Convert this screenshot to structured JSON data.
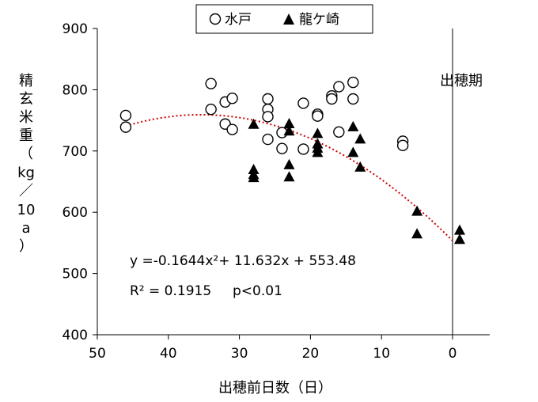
{
  "chart_data": {
    "type": "scatter",
    "xlabel": "出穂前日数（日）",
    "ylabel": [
      "精",
      "玄",
      "米",
      "重",
      "（",
      "kg",
      "／",
      "10",
      "a",
      "）"
    ],
    "xlim": [
      50,
      -5
    ],
    "ylim": [
      400,
      900
    ],
    "x_ticks": [
      "50",
      "40",
      "30",
      "20",
      "10",
      "0"
    ],
    "y_ticks": [
      "900",
      "800",
      "700",
      "600",
      "500",
      "400"
    ],
    "grid": false,
    "legend_position": "top-center",
    "series": [
      {
        "name": "水戸",
        "marker": "open-circle",
        "points": [
          [
            46,
            758
          ],
          [
            46,
            739
          ],
          [
            34,
            810
          ],
          [
            34,
            768
          ],
          [
            32,
            780
          ],
          [
            32,
            744
          ],
          [
            31,
            786
          ],
          [
            31,
            735
          ],
          [
            26,
            785
          ],
          [
            26,
            768
          ],
          [
            26,
            756
          ],
          [
            26,
            719
          ],
          [
            24,
            730
          ],
          [
            24,
            704
          ],
          [
            21,
            778
          ],
          [
            21,
            703
          ],
          [
            19,
            760
          ],
          [
            19,
            757
          ],
          [
            17,
            790
          ],
          [
            17,
            785
          ],
          [
            16,
            805
          ],
          [
            16,
            731
          ],
          [
            14,
            812
          ],
          [
            14,
            785
          ],
          [
            7,
            716
          ],
          [
            7,
            709
          ]
        ]
      },
      {
        "name": "龍ケ崎",
        "marker": "filled-triangle",
        "points": [
          [
            28,
            744
          ],
          [
            28,
            670
          ],
          [
            28,
            662
          ],
          [
            28,
            657
          ],
          [
            23,
            745
          ],
          [
            23,
            733
          ],
          [
            23,
            678
          ],
          [
            23,
            658
          ],
          [
            19,
            729
          ],
          [
            19,
            712
          ],
          [
            19,
            705
          ],
          [
            19,
            698
          ],
          [
            14,
            740
          ],
          [
            14,
            698
          ],
          [
            13,
            720
          ],
          [
            13,
            674
          ],
          [
            5,
            602
          ],
          [
            5,
            565
          ],
          [
            -1,
            571
          ],
          [
            -1,
            556
          ]
        ]
      }
    ],
    "trendline": {
      "type": "quadratic",
      "color": "#cc0000",
      "coefficients": {
        "a": -0.1644,
        "b": 11.632,
        "c": 553.48
      },
      "x_range": [
        46,
        0
      ]
    },
    "vertical_marker": {
      "x": 0,
      "label": "出穂期"
    },
    "annotations": {
      "equation": "y =-0.1644x²+ 11.632x + 553.48",
      "r2_label": "R² = 0.1915",
      "p_value": "p<0.01"
    }
  }
}
